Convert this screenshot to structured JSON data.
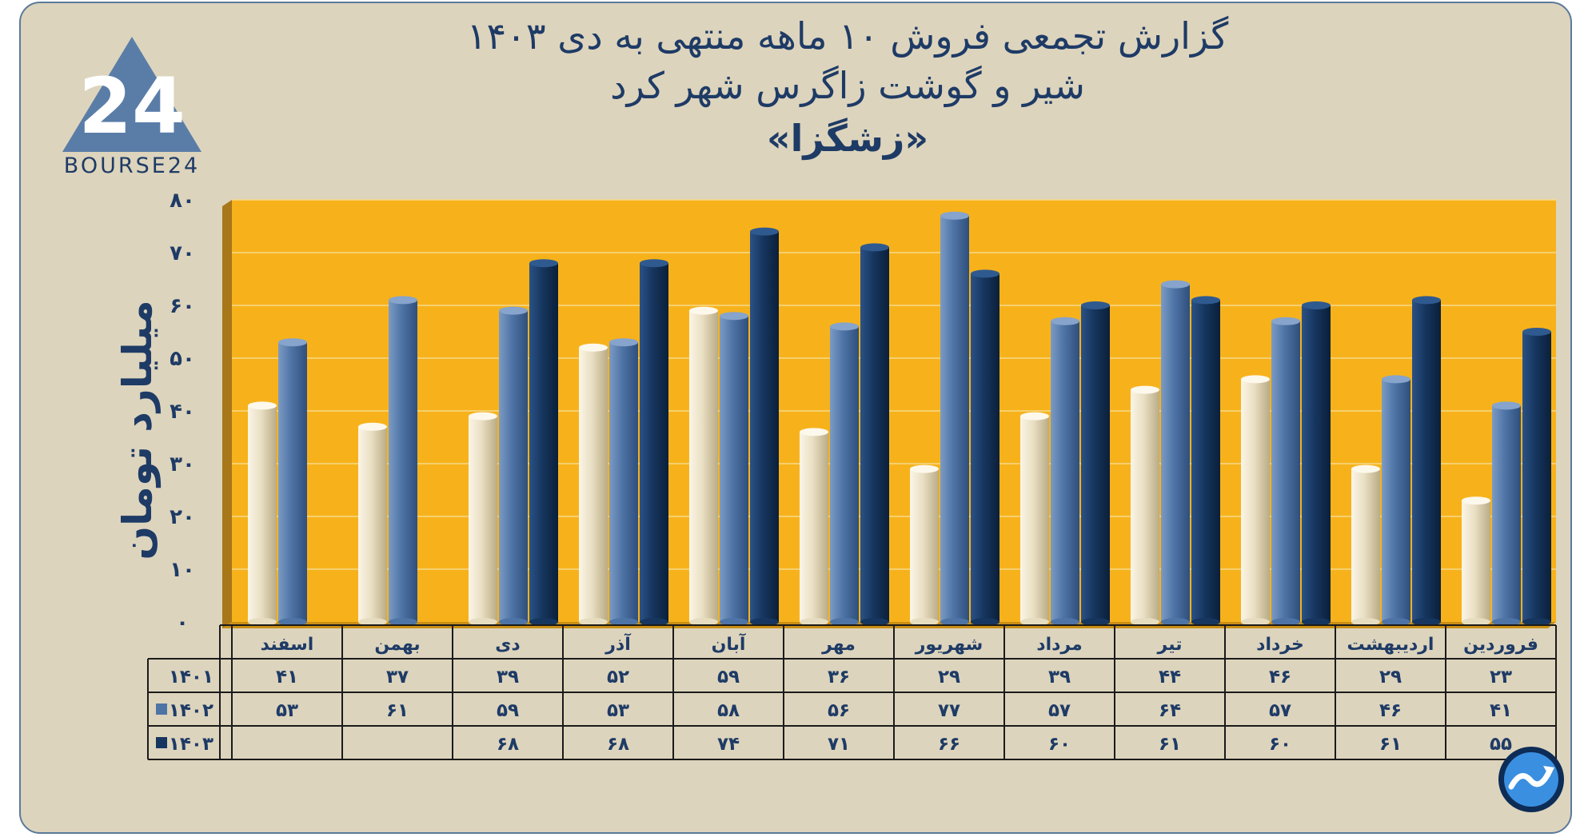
{
  "title_lines": [
    "گزارش تجمعی فروش ۱۰ ماهه منتهی به دی ۱۴۰۳",
    "شیر و گوشت زاگرس شهر کرد",
    "«زشگزا»"
  ],
  "logo": {
    "text": "BOURSE24",
    "numeral": "24"
  },
  "colors": {
    "plot_bg": "#f7b21b",
    "card_bg": "#ddd4bd",
    "text": "#1e3b66"
  },
  "chart_data": {
    "type": "bar",
    "ylabel": "میلیارد تومان",
    "ylim": [
      0,
      80
    ],
    "yticks": [
      0,
      10,
      20,
      30,
      40,
      50,
      60,
      70,
      80
    ],
    "ytick_labels": [
      "۰",
      "۱۰",
      "۲۰",
      "۳۰",
      "۴۰",
      "۵۰",
      "۶۰",
      "۷۰",
      "۸۰"
    ],
    "grid": true,
    "categories": [
      "فروردین",
      "اردیبهشت",
      "خرداد",
      "تیر",
      "مرداد",
      "شهریور",
      "مهر",
      "آبان",
      "آذر",
      "دی",
      "بهمن",
      "اسفند"
    ],
    "series": [
      {
        "name": "۱۴۰۱",
        "color": "#e6dcc0",
        "values": [
          23,
          29,
          46,
          44,
          39,
          29,
          36,
          59,
          52,
          39,
          37,
          41
        ],
        "labels": [
          "۲۳",
          "۲۹",
          "۴۶",
          "۴۴",
          "۳۹",
          "۲۹",
          "۳۶",
          "۵۹",
          "۵۲",
          "۳۹",
          "۳۷",
          "۴۱"
        ]
      },
      {
        "name": "۱۴۰۲",
        "color": "#4e74a6",
        "values": [
          41,
          46,
          57,
          64,
          57,
          77,
          56,
          58,
          53,
          59,
          61,
          53
        ],
        "labels": [
          "۴۱",
          "۴۶",
          "۵۷",
          "۶۴",
          "۵۷",
          "۷۷",
          "۵۶",
          "۵۸",
          "۵۳",
          "۵۹",
          "۶۱",
          "۵۳"
        ]
      },
      {
        "name": "۱۴۰۳",
        "color": "#16365f",
        "values": [
          55,
          61,
          60,
          61,
          60,
          66,
          71,
          74,
          68,
          68,
          null,
          null
        ],
        "labels": [
          "۵۵",
          "۶۱",
          "۶۰",
          "۶۱",
          "۶۰",
          "۶۶",
          "۷۱",
          "۷۴",
          "۶۸",
          "۶۸",
          "",
          ""
        ]
      }
    ],
    "layout": "data table below chart, months right-to-left"
  }
}
